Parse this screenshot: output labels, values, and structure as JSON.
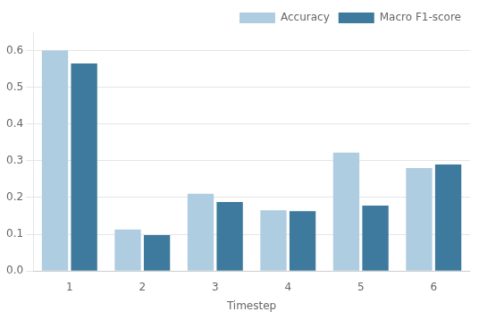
{
  "chart_data": {
    "type": "bar",
    "xlabel": "Timestep",
    "categories": [
      "1",
      "2",
      "3",
      "4",
      "5",
      "6"
    ],
    "series": [
      {
        "name": "Accuracy",
        "color": "#aecde0",
        "values": [
          0.6,
          0.113,
          0.21,
          0.165,
          0.322,
          0.28
        ]
      },
      {
        "name": "Macro F1-score",
        "color": "#3d7a9e",
        "values": [
          0.565,
          0.098,
          0.188,
          0.163,
          0.178,
          0.29
        ]
      }
    ],
    "ylim": [
      0.0,
      0.65
    ],
    "yticks": [
      {
        "value": 0.0,
        "label": "0.0"
      },
      0.1,
      0.2,
      0.3,
      0.4,
      0.5,
      0.6
    ],
    "grid": true,
    "legend": "upper right"
  }
}
